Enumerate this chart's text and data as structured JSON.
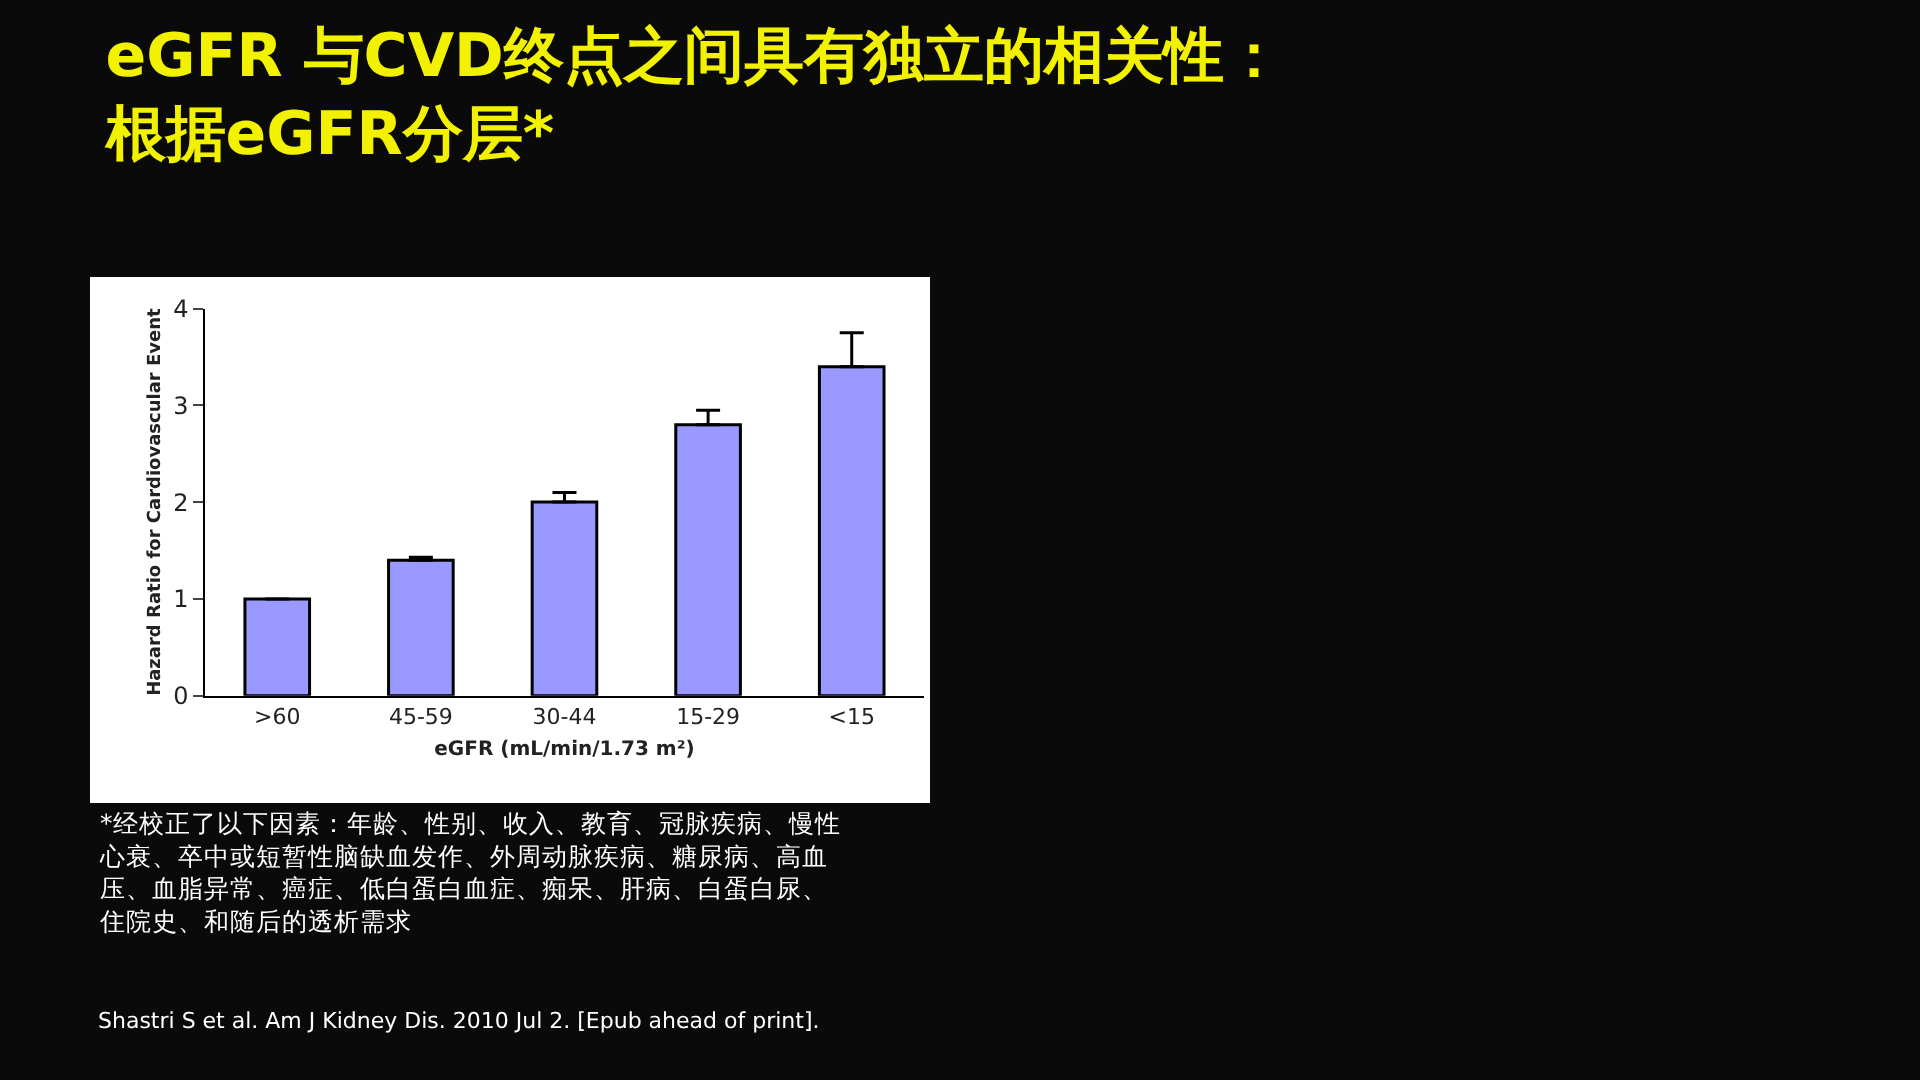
{
  "chart_data": {
    "type": "bar",
    "title": "eGFR 与CVD终点之间具有独立的相关性：根据eGFR分层*",
    "categories": [
      ">60",
      "45-59",
      "30-44",
      "15-29",
      "<15"
    ],
    "values": [
      1.0,
      1.4,
      2.0,
      2.8,
      3.4
    ],
    "errors": [
      null,
      [
        1.4,
        1.43
      ],
      [
        2.0,
        2.1
      ],
      [
        2.8,
        2.95
      ],
      [
        3.4,
        3.75
      ]
    ],
    "color": "#9999ff",
    "xlabel": "eGFR (mL/min/1.73 m²)",
    "ylabel": "Hazard Ratio for Cardiovascular Event",
    "ylim": [
      0,
      4
    ],
    "yticks": [
      0,
      1,
      2,
      3,
      4
    ],
    "annotations": [
      "*经校正了以下因素：年龄、性别、收入、教育、冠脉疾病、慢性心衰、卒中或短暂性脑缺血发作、外周动脉疾病、糖尿病、高血压、血脂异常、癌症、低白蛋白血症、痴呆、肝病、白蛋白尿、住院史、和随后的透析需求",
      "Shastri S et al. Am J Kidney Dis. 2010 Jul 2. [Epub ahead of print]."
    ]
  }
}
